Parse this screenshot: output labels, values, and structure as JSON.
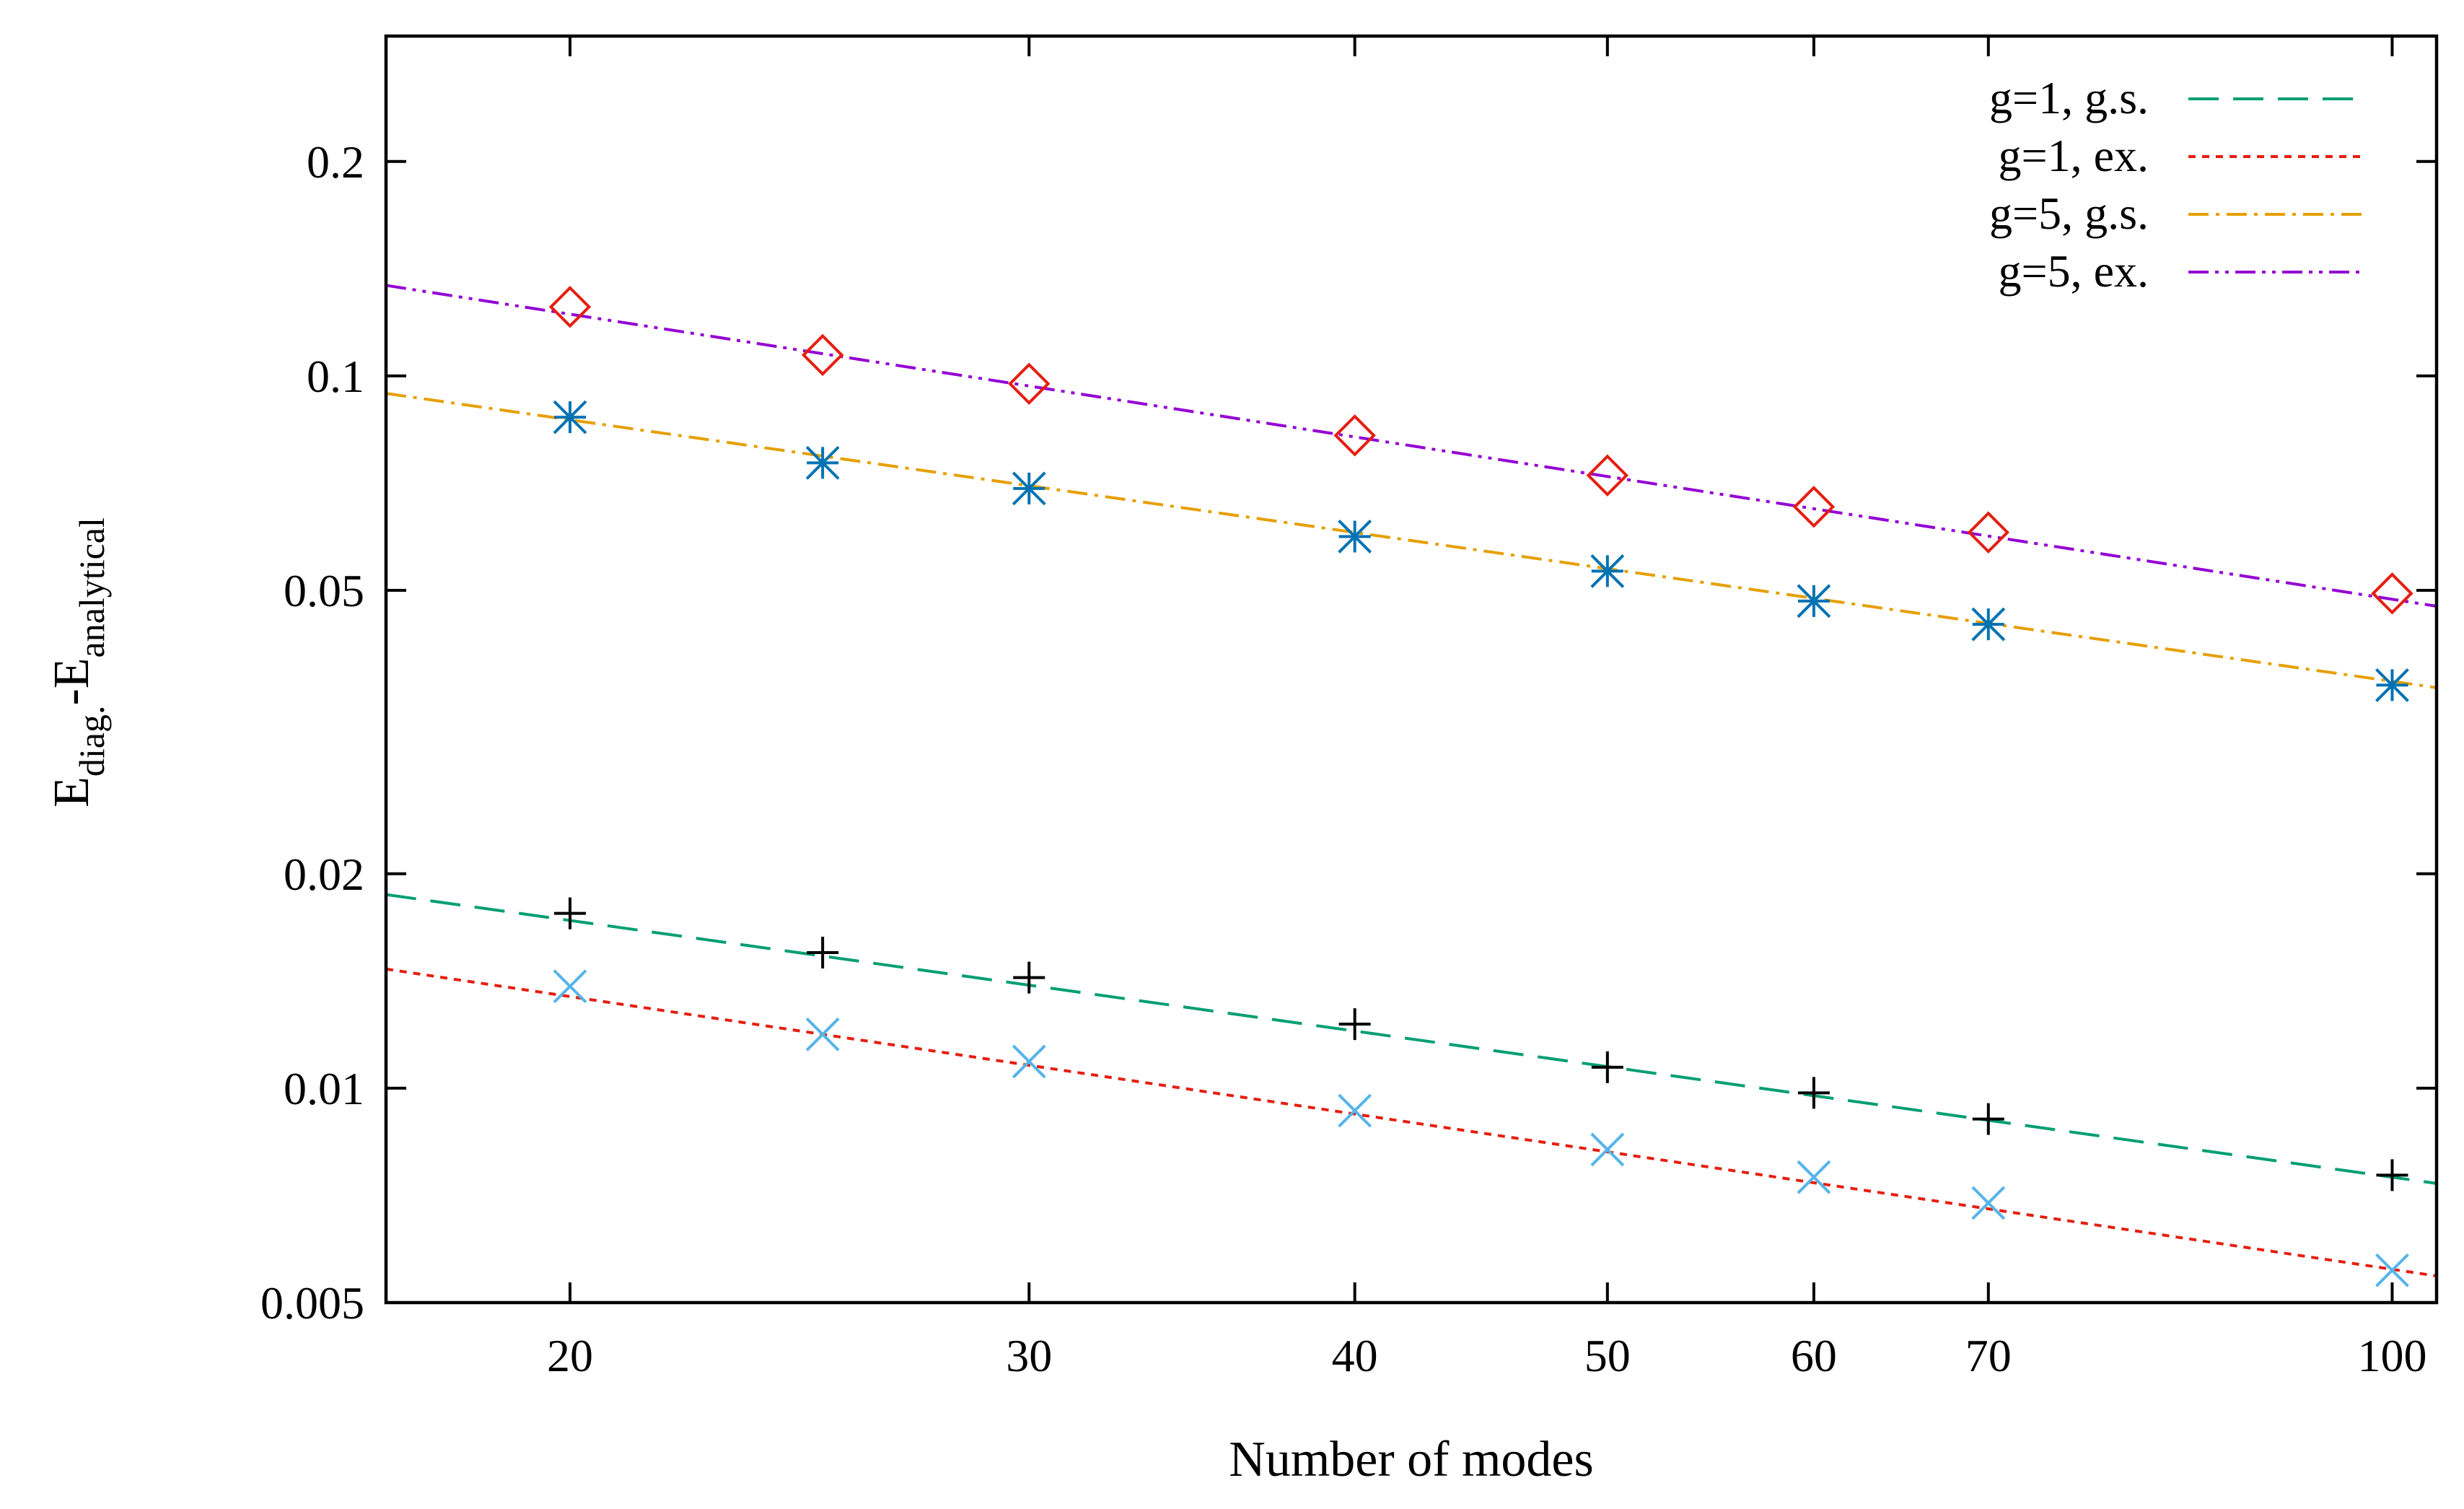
{
  "chart_data": {
    "type": "line",
    "title": "",
    "xlabel": "Number of modes",
    "ylabel": {
      "main": "E",
      "sub1": "diag.",
      "mid": "-E",
      "sub2": "analytical"
    },
    "xscale": "log",
    "yscale": "log",
    "xlim": [
      17,
      104
    ],
    "ylim": [
      0.005,
      0.3
    ],
    "xticks": [
      20,
      30,
      40,
      50,
      60,
      70,
      100
    ],
    "xtick_labels": [
      "20",
      "30",
      "40",
      "50",
      "60",
      "70",
      "100"
    ],
    "yticks": [
      0.005,
      0.01,
      0.02,
      0.05,
      0.1,
      0.2
    ],
    "ytick_labels": [
      "0.005",
      "0.01",
      "0.02",
      "0.05",
      "0.1",
      "0.2"
    ],
    "legend_position": "top-right",
    "fit_lines": [
      {
        "name": "g=1, g.s.",
        "color": "#009e73",
        "dash": "42 20",
        "x": [
          17,
          104
        ],
        "y": [
          0.0187,
          0.00735
        ]
      },
      {
        "name": "g=1, ex.",
        "color": "#e51e10",
        "dash": "10 9",
        "x": [
          17,
          104
        ],
        "y": [
          0.0147,
          0.00545
        ]
      },
      {
        "name": "g=5, g.s.",
        "color": "#e69f00",
        "dash": "28 10 5 10",
        "x": [
          17,
          104
        ],
        "y": [
          0.0945,
          0.0365
        ]
      },
      {
        "name": "g=5, ex.",
        "color": "#9400d3",
        "dash": "28 9 5 9 5 9",
        "x": [
          17,
          104
        ],
        "y": [
          0.134,
          0.0475
        ]
      }
    ],
    "point_series": [
      {
        "name": "g=1, g.s. data",
        "marker": "plus",
        "color": "#000000",
        "x": [
          20,
          25,
          30,
          40,
          50,
          60,
          70,
          100
        ],
        "y": [
          0.0176,
          0.0155,
          0.0143,
          0.0123,
          0.0107,
          0.00985,
          0.00905,
          0.00755
        ]
      },
      {
        "name": "g=1, ex. data",
        "marker": "cross",
        "color": "#56b4e9",
        "x": [
          20,
          25,
          30,
          40,
          50,
          60,
          70,
          100
        ],
        "y": [
          0.0139,
          0.0119,
          0.0109,
          0.0093,
          0.0082,
          0.0075,
          0.0069,
          0.00555
        ]
      },
      {
        "name": "g=5, g.s. data",
        "marker": "asterisk",
        "color": "#0072b2",
        "x": [
          20,
          25,
          30,
          40,
          50,
          60,
          70,
          100
        ],
        "y": [
          0.0875,
          0.0755,
          0.0695,
          0.0595,
          0.0532,
          0.0483,
          0.0448,
          0.0368
        ]
      },
      {
        "name": "g=5, ex. data",
        "marker": "diamond",
        "color": "#e51e10",
        "x": [
          20,
          25,
          30,
          40,
          50,
          60,
          70,
          100
        ],
        "y": [
          0.125,
          0.107,
          0.0975,
          0.0825,
          0.0725,
          0.0655,
          0.0603,
          0.0495
        ]
      }
    ]
  }
}
